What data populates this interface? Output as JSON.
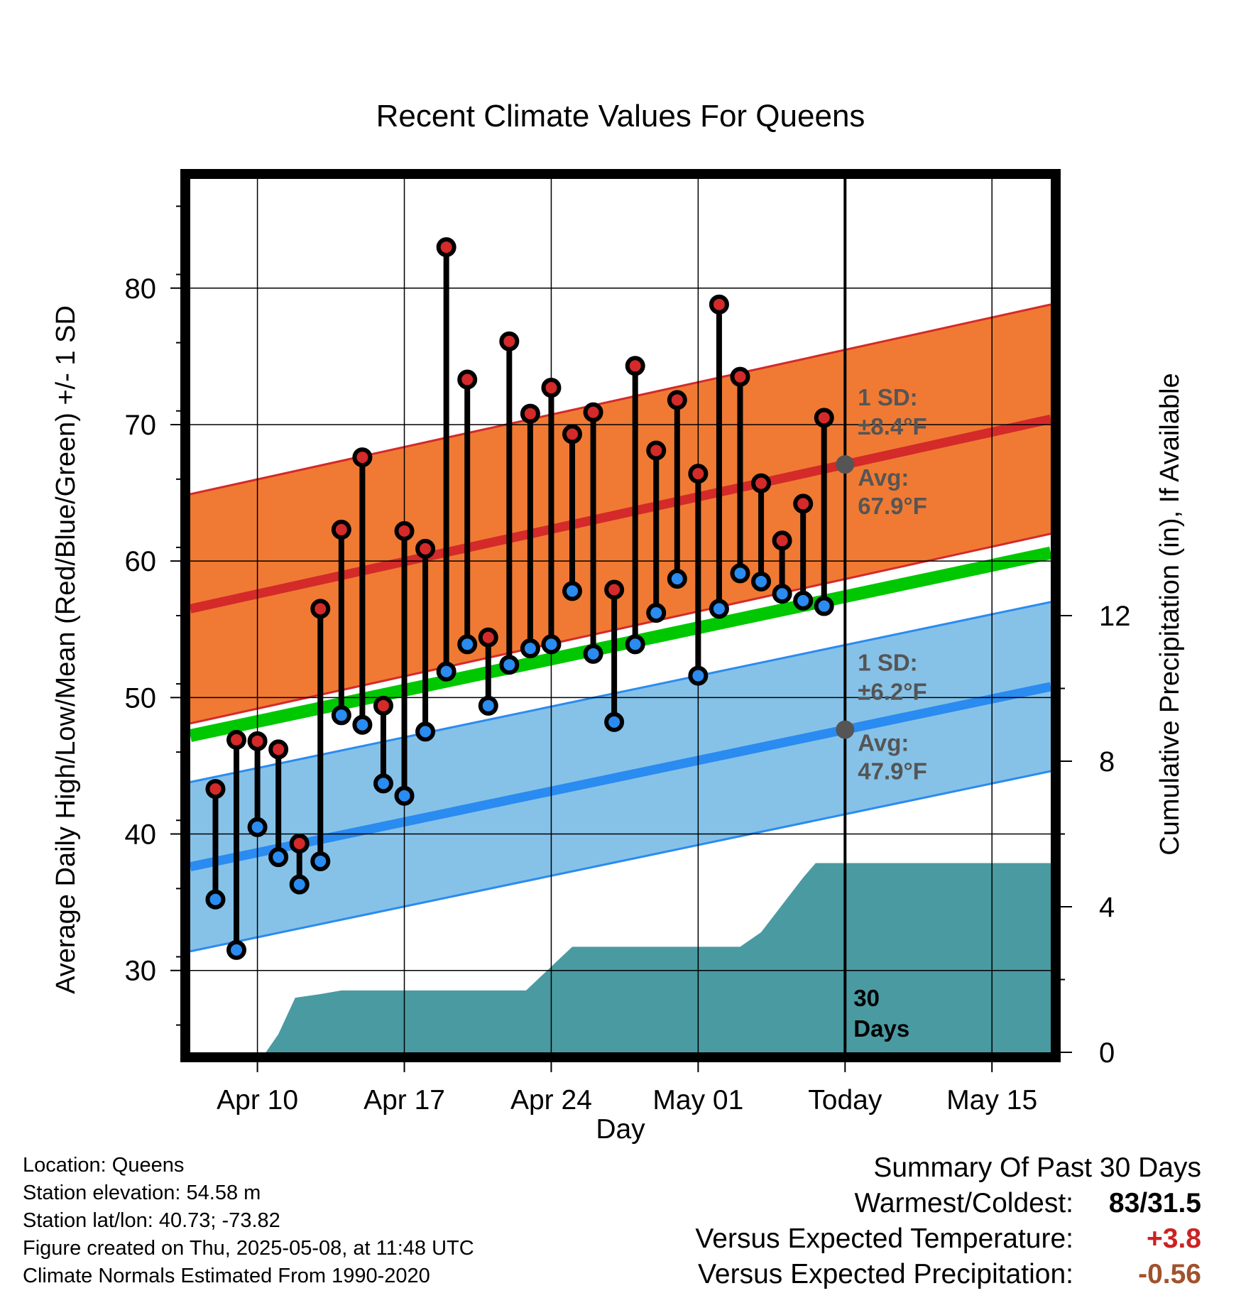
{
  "chart_data": {
    "type": "line",
    "title": "Recent Climate Values For Queens",
    "xlabel": "Day",
    "ylabel": "Average Daily High/Low/Mean (Red/Blue/Green) +/- 1 SD",
    "y2label": "Cumulative Precipitation (in), If Available",
    "x_ticks": [
      "Apr 10",
      "Apr 17",
      "Apr 24",
      "May 01",
      "Today",
      "May 15"
    ],
    "x_tick_days": [
      0,
      7,
      14,
      21,
      28,
      35
    ],
    "x_range_days": [
      -3.2,
      37.8
    ],
    "ylim": [
      24,
      88
    ],
    "y_ticks": [
      30,
      40,
      50,
      60,
      70,
      80
    ],
    "y2lim": [
      0,
      24
    ],
    "y2_ticks": [
      0,
      4,
      8,
      12
    ],
    "grid": true,
    "highs": [
      43.3,
      46.9,
      46.8,
      46.2,
      39.3,
      56.5,
      62.3,
      67.6,
      49.4,
      62.2,
      60.9,
      83.0,
      73.3,
      54.4,
      76.1,
      70.8,
      72.7,
      69.3,
      70.9,
      57.9,
      74.3,
      68.1,
      71.8,
      66.4,
      78.8,
      73.5,
      65.7,
      61.5,
      64.2,
      70.5
    ],
    "lows": [
      35.2,
      31.5,
      40.5,
      38.3,
      36.3,
      38.0,
      48.7,
      48.0,
      43.7,
      42.8,
      47.5,
      51.9,
      53.9,
      49.4,
      52.4,
      53.6,
      53.9,
      57.8,
      53.2,
      48.2,
      53.9,
      56.2,
      58.7,
      51.6,
      56.5,
      59.1,
      58.5,
      57.6,
      57.1,
      56.7
    ],
    "normal_high": {
      "start": 56.5,
      "end": 70.4,
      "sd": 8.4
    },
    "normal_low": {
      "start": 37.6,
      "end": 50.8,
      "sd": 6.2
    },
    "normal_mean": {
      "start": 47.2,
      "end": 60.6
    },
    "precip_cumulative": {
      "days": [
        -3.2,
        0.4,
        1.0,
        1.8,
        3.0,
        4.0,
        5.0,
        12.8,
        15.0,
        16.0,
        20.0,
        23.0,
        24.0,
        26.0,
        26.6,
        27.0,
        28.0,
        37.8
      ],
      "values": [
        0,
        0,
        0.5,
        1.5,
        1.6,
        1.7,
        1.7,
        1.7,
        2.9,
        2.9,
        2.9,
        2.9,
        3.3,
        4.8,
        5.2,
        5.2,
        5.2,
        5.2
      ]
    },
    "annotations": {
      "high_sd": "1 SD:",
      "high_sd_val": "±8.4°F",
      "high_avg": "Avg:",
      "high_avg_val": "67.9°F",
      "low_sd": "1 SD:",
      "low_sd_val": "±6.2°F",
      "low_avg": "Avg:",
      "low_avg_val": "47.9°F",
      "days_top": "30",
      "days_bottom": "Days"
    },
    "colors": {
      "high_band": "#f07a33",
      "high_line": "#d42a2a",
      "low_band": "#86c2e8",
      "low_line": "#2a8bf0",
      "mean_line": "#00c800",
      "precip": "#4a9aa2",
      "high_point": "#d42a2a",
      "low_point": "#2a8bf0",
      "annotation": "#555555"
    }
  },
  "footer": {
    "location": "Location: Queens",
    "elevation": "Station elevation: 54.58 m",
    "latlon": "Station lat/lon: 40.73; -73.82",
    "created": "Figure created on Thu, 2025-05-08, at 11:48 UTC",
    "normals": "Climate Normals Estimated From 1990-2020"
  },
  "summary": {
    "title": "Summary Of Past 30 Days",
    "warm_cold_label": "Warmest/Coldest:",
    "warm_cold_value": "83/31.5",
    "temp_label": "Versus Expected Temperature:",
    "temp_value": "+3.8",
    "temp_color": "#cc2222",
    "precip_label": "Versus Expected Precipitation:",
    "precip_value": "-0.56",
    "precip_color": "#a0522d"
  }
}
